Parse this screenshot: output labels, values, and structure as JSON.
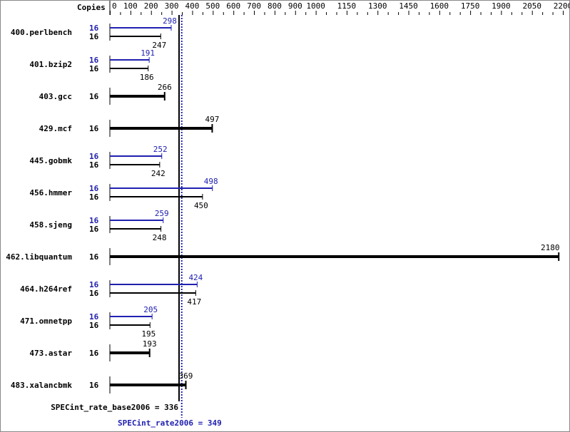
{
  "chart_data": {
    "type": "bar",
    "orientation": "horizontal",
    "copies_header": "Copies",
    "xlim": [
      0,
      2200
    ],
    "tick_labels": [
      "0",
      "100",
      "200",
      "300",
      "400",
      "500",
      "600",
      "700",
      "800",
      "900",
      "1000",
      "1150",
      "1300",
      "1450",
      "1600",
      "1750",
      "1900",
      "2050",
      "2200"
    ],
    "benchmarks": [
      {
        "name": "400.perlbench",
        "peak_copies": "16",
        "peak": 298,
        "base_copies": "16",
        "base": 247
      },
      {
        "name": "401.bzip2",
        "peak_copies": "16",
        "peak": 191,
        "base_copies": "16",
        "base": 186
      },
      {
        "name": "403.gcc",
        "base_copies": "16",
        "base": 266
      },
      {
        "name": "429.mcf",
        "base_copies": "16",
        "base": 497
      },
      {
        "name": "445.gobmk",
        "peak_copies": "16",
        "peak": 252,
        "base_copies": "16",
        "base": 242
      },
      {
        "name": "456.hmmer",
        "peak_copies": "16",
        "peak": 498,
        "base_copies": "16",
        "base": 450
      },
      {
        "name": "458.sjeng",
        "peak_copies": "16",
        "peak": 259,
        "base_copies": "16",
        "base": 248
      },
      {
        "name": "462.libquantum",
        "base_copies": "16",
        "base": 2180
      },
      {
        "name": "464.h264ref",
        "peak_copies": "16",
        "peak": 424,
        "base_copies": "16",
        "base": 417
      },
      {
        "name": "471.omnetpp",
        "peak_copies": "16",
        "peak": 205,
        "base_copies": "16",
        "base": 195
      },
      {
        "name": "473.astar",
        "base_copies": "16",
        "base": 193
      },
      {
        "name": "483.xalancbmk",
        "base_copies": "16",
        "base": 369
      }
    ],
    "base_metric": {
      "label": "SPECint_rate_base2006 = 336",
      "value": 336
    },
    "peak_metric": {
      "label": "SPECint_rate2006 = 349",
      "value": 349
    },
    "colors": {
      "base": "#000000",
      "peak": "#2020b0"
    }
  }
}
